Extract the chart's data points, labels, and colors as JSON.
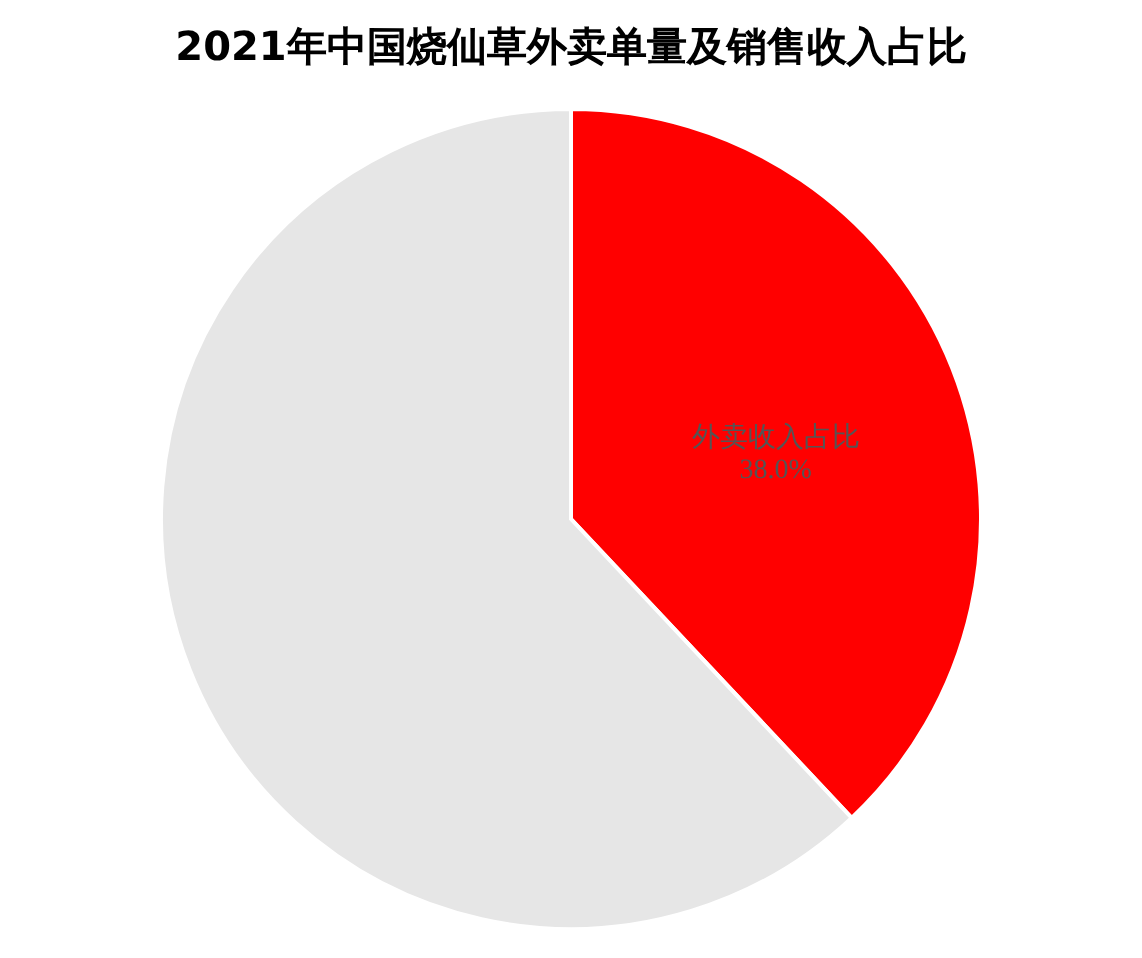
{
  "chart_data": {
    "type": "pie",
    "title": "2021年中国烧仙草外卖单量及销售收入占比",
    "categories": [
      "外卖收入占比",
      null
    ],
    "values": [
      38.0,
      62.0
    ],
    "colors": [
      "#ff0000",
      "#e6e6e6"
    ],
    "value_labels": [
      "38.0%",
      null
    ],
    "legend": false
  }
}
